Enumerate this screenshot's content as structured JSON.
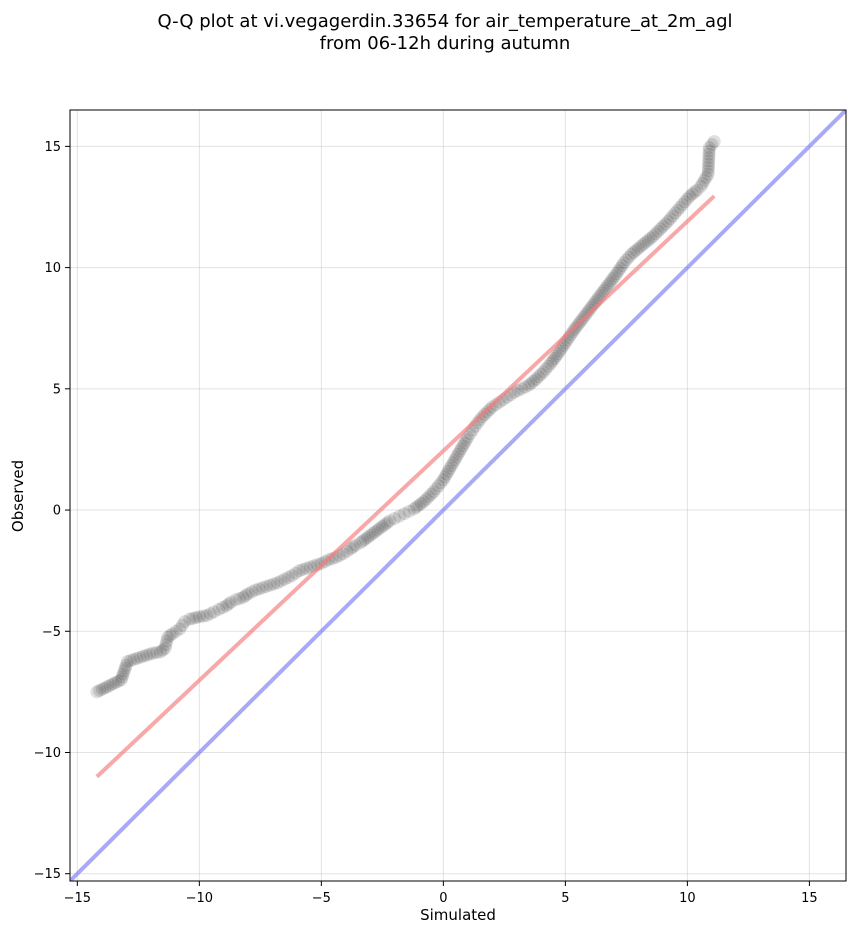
{
  "chart_data": {
    "type": "scatter",
    "title_lines": [
      "Q-Q plot at vi.vegagerdin.33654 for air_temperature_at_2m_agl",
      "from 06-12h during autumn"
    ],
    "xlabel": "Simulated",
    "ylabel": "Observed",
    "xlim": [
      -15.3,
      16.5
    ],
    "ylim": [
      -15.3,
      16.5
    ],
    "xticks": [
      -15,
      -10,
      -5,
      0,
      5,
      10,
      15
    ],
    "yticks": [
      -15,
      -10,
      -5,
      0,
      5,
      10,
      15
    ],
    "xtick_labels": [
      "−15",
      "−10",
      "−5",
      "0",
      "5",
      "10",
      "15"
    ],
    "ytick_labels": [
      "−15",
      "−10",
      "−5",
      "0",
      "5",
      "10",
      "15"
    ],
    "grid": true,
    "series": [
      {
        "kind": "points",
        "color": "#000000",
        "opacity": 0.12,
        "points": [
          [
            -14.2,
            -7.5
          ],
          [
            -13.2,
            -7.0
          ],
          [
            -13.0,
            -6.4
          ],
          [
            -12.95,
            -6.25
          ],
          [
            -11.9,
            -5.9
          ],
          [
            -11.6,
            -5.85
          ],
          [
            -11.4,
            -5.7
          ],
          [
            -11.3,
            -5.25
          ],
          [
            -11.1,
            -5.1
          ],
          [
            -10.8,
            -4.9
          ],
          [
            -10.6,
            -4.6
          ],
          [
            -10.4,
            -4.5
          ],
          [
            -10.0,
            -4.4
          ],
          [
            -9.7,
            -4.35
          ],
          [
            -9.4,
            -4.2
          ],
          [
            -9.2,
            -4.1
          ],
          [
            -8.9,
            -3.95
          ],
          [
            -8.7,
            -3.8
          ],
          [
            -8.5,
            -3.7
          ],
          [
            -8.2,
            -3.6
          ],
          [
            -8.0,
            -3.45
          ],
          [
            -7.7,
            -3.3
          ],
          [
            -7.4,
            -3.2
          ],
          [
            -7.1,
            -3.1
          ],
          [
            -6.8,
            -3.0
          ],
          [
            -6.5,
            -2.85
          ],
          [
            -6.2,
            -2.7
          ],
          [
            -5.9,
            -2.5
          ],
          [
            -5.6,
            -2.4
          ],
          [
            -5.3,
            -2.3
          ],
          [
            -5.0,
            -2.2
          ],
          [
            -4.7,
            -2.05
          ],
          [
            -4.4,
            -1.95
          ],
          [
            -4.1,
            -1.8
          ],
          [
            -3.8,
            -1.6
          ],
          [
            -3.6,
            -1.45
          ],
          [
            -3.4,
            -1.35
          ],
          [
            -3.2,
            -1.2
          ],
          [
            -3.0,
            -1.05
          ],
          [
            -2.8,
            -0.9
          ],
          [
            -2.6,
            -0.75
          ],
          [
            -2.4,
            -0.6
          ],
          [
            -2.2,
            -0.45
          ],
          [
            -2.0,
            -0.35
          ],
          [
            -1.8,
            -0.25
          ],
          [
            -1.6,
            -0.15
          ],
          [
            -1.4,
            -0.05
          ],
          [
            -1.2,
            0.05
          ],
          [
            -1.0,
            0.2
          ],
          [
            -0.8,
            0.35
          ],
          [
            -0.6,
            0.55
          ],
          [
            -0.4,
            0.75
          ],
          [
            -0.2,
            1.0
          ],
          [
            0.0,
            1.25
          ],
          [
            0.2,
            1.6
          ],
          [
            0.4,
            1.95
          ],
          [
            0.6,
            2.3
          ],
          [
            0.8,
            2.65
          ],
          [
            1.0,
            3.0
          ],
          [
            1.2,
            3.3
          ],
          [
            1.4,
            3.6
          ],
          [
            1.6,
            3.85
          ],
          [
            1.8,
            4.05
          ],
          [
            2.0,
            4.25
          ],
          [
            2.3,
            4.45
          ],
          [
            2.6,
            4.65
          ],
          [
            2.9,
            4.85
          ],
          [
            3.2,
            5.0
          ],
          [
            3.5,
            5.15
          ],
          [
            3.8,
            5.4
          ],
          [
            4.1,
            5.7
          ],
          [
            4.4,
            6.05
          ],
          [
            4.7,
            6.45
          ],
          [
            5.0,
            6.9
          ],
          [
            5.3,
            7.35
          ],
          [
            5.6,
            7.75
          ],
          [
            5.9,
            8.15
          ],
          [
            6.2,
            8.55
          ],
          [
            6.5,
            8.95
          ],
          [
            6.8,
            9.35
          ],
          [
            7.1,
            9.75
          ],
          [
            7.4,
            10.2
          ],
          [
            7.7,
            10.55
          ],
          [
            8.0,
            10.8
          ],
          [
            8.3,
            11.05
          ],
          [
            8.6,
            11.3
          ],
          [
            8.9,
            11.6
          ],
          [
            9.2,
            11.9
          ],
          [
            9.5,
            12.25
          ],
          [
            9.8,
            12.6
          ],
          [
            10.1,
            12.95
          ],
          [
            10.4,
            13.2
          ],
          [
            10.55,
            13.35
          ],
          [
            10.7,
            13.6
          ],
          [
            10.85,
            13.85
          ],
          [
            10.9,
            14.95
          ],
          [
            11.1,
            15.2
          ]
        ]
      },
      {
        "kind": "line",
        "role": "fit",
        "color": "#f47a7a",
        "opacity": 0.65,
        "points": [
          [
            -14.2,
            -11.0
          ],
          [
            11.1,
            12.95
          ]
        ]
      },
      {
        "kind": "line",
        "role": "identity",
        "color": "#7b7bf5",
        "opacity": 0.65,
        "points": [
          [
            -15.3,
            -15.3
          ],
          [
            16.5,
            16.5
          ]
        ]
      }
    ]
  }
}
